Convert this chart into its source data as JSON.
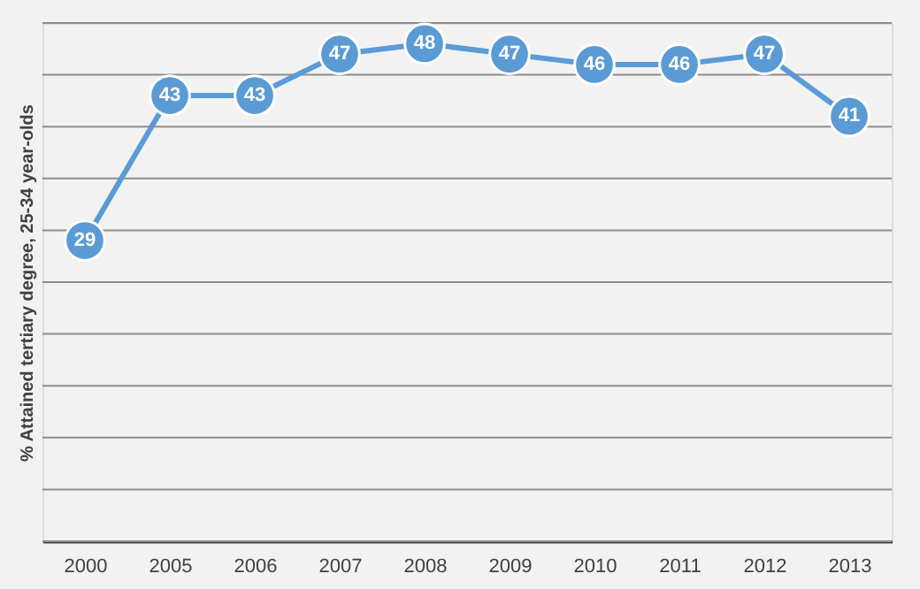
{
  "chart_data": {
    "type": "line",
    "ylabel": "% Attained  tertiary degree, 25-34 year-olds",
    "categories": [
      "2000",
      "2005",
      "2006",
      "2007",
      "2008",
      "2009",
      "2010",
      "2011",
      "2012",
      "2013"
    ],
    "series": [
      {
        "color": "#5b9bd5",
        "values": [
          29,
          43,
          43,
          47,
          48,
          47,
          46,
          46,
          47,
          41
        ]
      }
    ],
    "ylim": [
      0,
      50
    ],
    "grid": "y",
    "tick_labels": "x",
    "marker": "circle",
    "line_style": "solid",
    "data_labels": true
  }
}
